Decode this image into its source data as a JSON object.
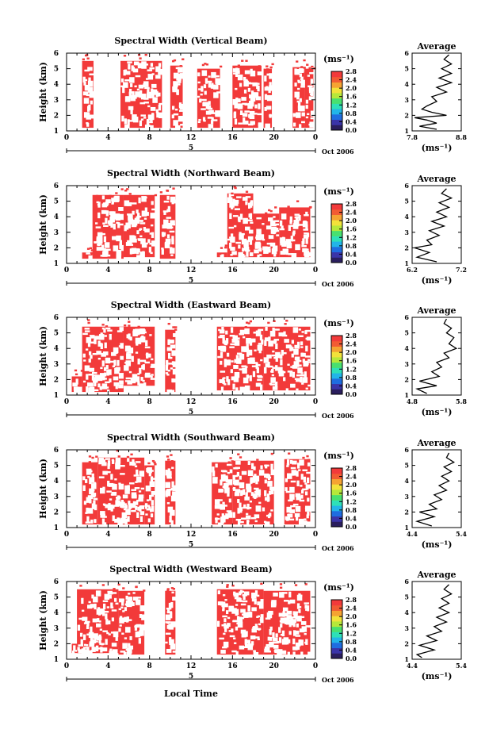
{
  "xlabel": "Local Time",
  "date_label": "Oct 2006",
  "day_label": "5",
  "ylabel": "Height (km)",
  "unit": "(ms⁻¹)",
  "average_title": "Average",
  "red_color": "#f23a3a",
  "chart_data": [
    {
      "type": "heatmap",
      "title": "Spectral Width (Vertical Beam)",
      "x_ticks": [
        "0",
        "4",
        "8",
        "12",
        "16",
        "20",
        "0"
      ],
      "y_ticks": [
        "1",
        "2",
        "3",
        "4",
        "5",
        "6"
      ],
      "xlim": [
        0,
        24
      ],
      "ylim": [
        1,
        6
      ],
      "colorbar_ticks": [
        "0.0",
        "0.4",
        "0.8",
        "1.2",
        "1.6",
        "2.0",
        "2.4",
        "2.8"
      ],
      "colorbar_range": [
        0,
        2.8
      ],
      "blocks": [
        [
          1.5,
          2.6,
          1.2,
          5.5
        ],
        [
          5.2,
          9.2,
          1.2,
          5.5
        ],
        [
          10.0,
          11.2,
          1.2,
          5.2
        ],
        [
          12.6,
          14.8,
          1.2,
          5.0
        ],
        [
          16.0,
          18.8,
          1.2,
          5.2
        ],
        [
          19.0,
          19.8,
          1.2,
          5.0
        ],
        [
          21.8,
          23.0,
          1.2,
          5.1
        ],
        [
          23.0,
          23.8,
          1.2,
          5.0
        ]
      ],
      "average": {
        "x_ticks": [
          "7.8",
          "8.8"
        ],
        "xlim": [
          7.8,
          8.8
        ],
        "ylim": [
          1,
          6
        ],
        "profile": [
          [
            8.3,
            1.1
          ],
          [
            7.95,
            1.3
          ],
          [
            8.3,
            1.5
          ],
          [
            8.1,
            1.7
          ],
          [
            7.85,
            1.85
          ],
          [
            8.5,
            2.0
          ],
          [
            8.2,
            2.2
          ],
          [
            8.0,
            2.4
          ],
          [
            8.1,
            2.6
          ],
          [
            8.3,
            2.9
          ],
          [
            8.2,
            3.2
          ],
          [
            8.5,
            3.5
          ],
          [
            8.3,
            3.8
          ],
          [
            8.6,
            4.1
          ],
          [
            8.35,
            4.4
          ],
          [
            8.6,
            4.7
          ],
          [
            8.4,
            5.0
          ],
          [
            8.6,
            5.3
          ],
          [
            8.45,
            5.6
          ],
          [
            8.55,
            5.9
          ]
        ]
      }
    },
    {
      "type": "heatmap",
      "title": "Spectral Width (Northward Beam)",
      "x_ticks": [
        "0",
        "4",
        "8",
        "12",
        "16",
        "20",
        "0"
      ],
      "y_ticks": [
        "1",
        "2",
        "3",
        "4",
        "5",
        "6"
      ],
      "xlim": [
        0,
        24
      ],
      "ylim": [
        1,
        6
      ],
      "colorbar_ticks": [
        "0.0",
        "0.4",
        "0.8",
        "1.2",
        "1.6",
        "2.0",
        "2.4",
        "2.8"
      ],
      "colorbar_range": [
        0,
        2.8
      ],
      "blocks": [
        [
          1.5,
          2.5,
          1.3,
          1.7
        ],
        [
          2.5,
          5.5,
          1.3,
          5.4
        ],
        [
          5.5,
          8.5,
          1.4,
          5.4
        ],
        [
          9.0,
          10.5,
          1.3,
          5.4
        ],
        [
          14.5,
          15.5,
          1.4,
          1.7
        ],
        [
          15.5,
          18.0,
          1.4,
          5.5
        ],
        [
          18.0,
          20.5,
          1.4,
          4.2
        ],
        [
          20.5,
          23.5,
          1.4,
          4.6
        ]
      ],
      "average": {
        "x_ticks": [
          "6.2",
          "7.2"
        ],
        "xlim": [
          6.2,
          7.2
        ],
        "ylim": [
          1,
          6
        ],
        "profile": [
          [
            6.7,
            1.1
          ],
          [
            6.3,
            1.4
          ],
          [
            6.55,
            1.7
          ],
          [
            6.25,
            2.0
          ],
          [
            6.6,
            2.2
          ],
          [
            6.5,
            2.5
          ],
          [
            6.75,
            2.8
          ],
          [
            6.55,
            3.1
          ],
          [
            6.85,
            3.4
          ],
          [
            6.6,
            3.7
          ],
          [
            6.9,
            4.0
          ],
          [
            6.7,
            4.3
          ],
          [
            6.95,
            4.6
          ],
          [
            6.75,
            4.9
          ],
          [
            7.0,
            5.2
          ],
          [
            6.8,
            5.5
          ],
          [
            6.9,
            5.8
          ]
        ]
      }
    },
    {
      "type": "heatmap",
      "title": "Spectral Width (Eastward Beam)",
      "x_ticks": [
        "0",
        "4",
        "8",
        "12",
        "16",
        "20",
        "0"
      ],
      "y_ticks": [
        "1",
        "2",
        "3",
        "4",
        "5",
        "6"
      ],
      "xlim": [
        0,
        24
      ],
      "ylim": [
        1,
        6
      ],
      "colorbar_ticks": [
        "0.0",
        "0.4",
        "0.8",
        "1.2",
        "1.6",
        "2.0",
        "2.4",
        "2.8"
      ],
      "colorbar_range": [
        0,
        2.8
      ],
      "blocks": [
        [
          0.5,
          1.5,
          1.2,
          2.2
        ],
        [
          1.5,
          5.5,
          1.2,
          5.4
        ],
        [
          5.5,
          8.5,
          1.6,
          5.4
        ],
        [
          9.5,
          10.5,
          1.2,
          5.2
        ],
        [
          14.5,
          19.0,
          1.3,
          5.4
        ],
        [
          19.0,
          23.5,
          1.3,
          5.4
        ]
      ],
      "average": {
        "x_ticks": [
          "4.8",
          "5.8"
        ],
        "xlim": [
          4.8,
          5.8
        ],
        "ylim": [
          1,
          6
        ],
        "profile": [
          [
            5.1,
            1.1
          ],
          [
            4.9,
            1.4
          ],
          [
            5.3,
            1.6
          ],
          [
            4.95,
            1.9
          ],
          [
            5.35,
            2.2
          ],
          [
            5.2,
            2.5
          ],
          [
            5.4,
            2.8
          ],
          [
            5.3,
            3.1
          ],
          [
            5.55,
            3.4
          ],
          [
            5.45,
            3.7
          ],
          [
            5.7,
            4.0
          ],
          [
            5.55,
            4.3
          ],
          [
            5.65,
            4.7
          ],
          [
            5.5,
            5.0
          ],
          [
            5.6,
            5.3
          ],
          [
            5.45,
            5.6
          ],
          [
            5.5,
            5.9
          ]
        ]
      }
    },
    {
      "type": "heatmap",
      "title": "Spectral Width (Southward Beam)",
      "x_ticks": [
        "0",
        "4",
        "8",
        "12",
        "16",
        "20",
        "0"
      ],
      "y_ticks": [
        "1",
        "2",
        "3",
        "4",
        "5",
        "6"
      ],
      "xlim": [
        0,
        24
      ],
      "ylim": [
        1,
        6
      ],
      "colorbar_ticks": [
        "0.0",
        "0.4",
        "0.8",
        "1.2",
        "1.6",
        "2.0",
        "2.4",
        "2.8"
      ],
      "colorbar_range": [
        0,
        2.8
      ],
      "blocks": [
        [
          1.5,
          3.0,
          1.2,
          5.2
        ],
        [
          3.0,
          7.5,
          1.2,
          5.5
        ],
        [
          7.5,
          8.5,
          1.2,
          5.0
        ],
        [
          9.5,
          10.5,
          1.2,
          5.3
        ],
        [
          14.0,
          16.0,
          1.2,
          5.2
        ],
        [
          16.0,
          20.0,
          1.2,
          5.3
        ],
        [
          21.0,
          23.5,
          1.2,
          5.4
        ]
      ],
      "average": {
        "x_ticks": [
          "4.4",
          "5.4"
        ],
        "xlim": [
          4.4,
          5.4
        ],
        "ylim": [
          1,
          6
        ],
        "profile": [
          [
            4.8,
            1.1
          ],
          [
            4.5,
            1.4
          ],
          [
            4.85,
            1.7
          ],
          [
            4.55,
            2.0
          ],
          [
            4.9,
            2.2
          ],
          [
            4.75,
            2.5
          ],
          [
            5.0,
            2.8
          ],
          [
            4.85,
            3.1
          ],
          [
            5.1,
            3.4
          ],
          [
            4.95,
            3.7
          ],
          [
            5.15,
            4.0
          ],
          [
            5.0,
            4.3
          ],
          [
            5.2,
            4.6
          ],
          [
            5.05,
            4.9
          ],
          [
            5.25,
            5.2
          ],
          [
            5.1,
            5.5
          ],
          [
            5.15,
            5.8
          ]
        ]
      }
    },
    {
      "type": "heatmap",
      "title": "Spectral Width (Westward Beam)",
      "x_ticks": [
        "0",
        "4",
        "8",
        "12",
        "16",
        "20",
        "0"
      ],
      "y_ticks": [
        "1",
        "2",
        "3",
        "4",
        "5",
        "6"
      ],
      "xlim": [
        0,
        24
      ],
      "ylim": [
        1,
        6
      ],
      "colorbar_ticks": [
        "0.0",
        "0.4",
        "0.8",
        "1.2",
        "1.6",
        "2.0",
        "2.4",
        "2.8"
      ],
      "colorbar_range": [
        0,
        2.8
      ],
      "blocks": [
        [
          0.5,
          5.0,
          1.4,
          2.0
        ],
        [
          1.0,
          5.0,
          1.4,
          5.5
        ],
        [
          5.0,
          7.5,
          1.3,
          5.4
        ],
        [
          9.5,
          10.5,
          1.3,
          5.4
        ],
        [
          14.5,
          19.0,
          1.3,
          5.5
        ],
        [
          19.0,
          23.5,
          1.3,
          5.4
        ]
      ],
      "average": {
        "x_ticks": [
          "4.4",
          "5.4"
        ],
        "xlim": [
          4.4,
          5.4
        ],
        "ylim": [
          1,
          6
        ],
        "profile": [
          [
            4.6,
            1.1
          ],
          [
            4.5,
            1.3
          ],
          [
            4.85,
            1.6
          ],
          [
            4.55,
            1.9
          ],
          [
            4.9,
            2.2
          ],
          [
            4.7,
            2.5
          ],
          [
            5.0,
            2.8
          ],
          [
            4.85,
            3.1
          ],
          [
            5.1,
            3.4
          ],
          [
            4.9,
            3.7
          ],
          [
            5.15,
            4.0
          ],
          [
            4.95,
            4.3
          ],
          [
            5.15,
            4.6
          ],
          [
            5.0,
            4.9
          ],
          [
            5.2,
            5.2
          ],
          [
            5.05,
            5.5
          ],
          [
            5.15,
            5.8
          ]
        ]
      }
    }
  ]
}
